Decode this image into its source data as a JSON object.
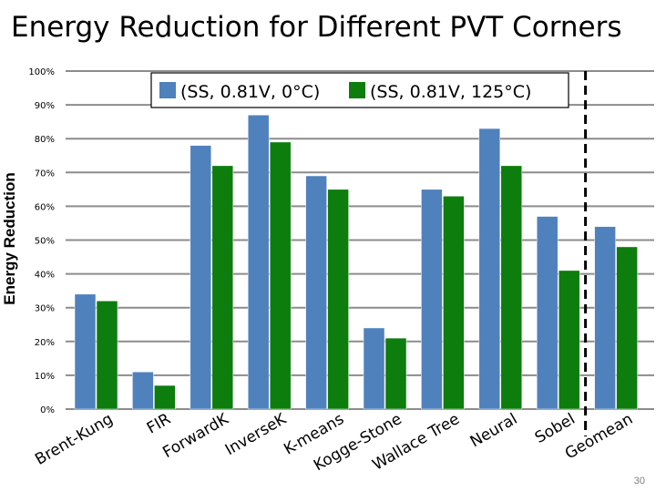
{
  "slide": {
    "title": "Energy Reduction for Different PVT Corners",
    "page_number": "30"
  },
  "chart_data": {
    "type": "bar",
    "title": "Energy Reduction for Different PVT Corners",
    "xlabel": "",
    "ylabel": "Energy Reduction",
    "ylim": [
      0,
      100
    ],
    "yticks": [
      "0%",
      "10%",
      "20%",
      "30%",
      "40%",
      "50%",
      "60%",
      "70%",
      "80%",
      "90%",
      "100%"
    ],
    "categories": [
      "Brent-Kung",
      "FIR",
      "ForwardK",
      "InverseK",
      "K-means",
      "Kogge-Stone",
      "Wallace Tree",
      "Neural",
      "Sobel",
      "Geomean"
    ],
    "series": [
      {
        "name": "(SS, 0.81V, 0°C)",
        "color": "#4f81bd",
        "values": [
          34,
          11,
          78,
          87,
          69,
          24,
          65,
          83,
          57,
          54
        ]
      },
      {
        "name": "(SS, 0.81V, 125°C)",
        "color": "#0d7d0d",
        "values": [
          32,
          7,
          72,
          79,
          65,
          21,
          63,
          72,
          41,
          48
        ]
      }
    ],
    "grid": true,
    "legend": "top",
    "separator": "dashed vertical line before Geomean"
  }
}
